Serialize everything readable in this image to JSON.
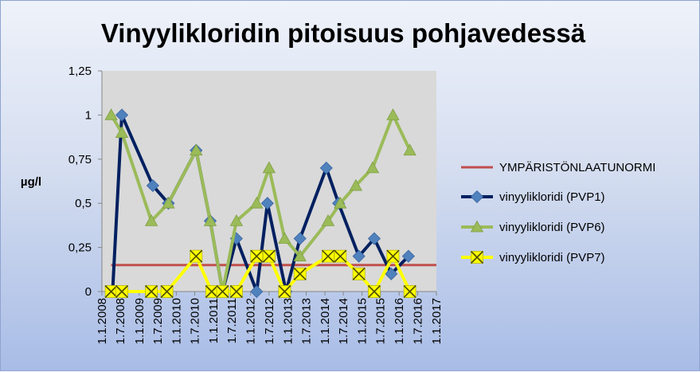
{
  "chart_data": {
    "type": "line",
    "title": "Vinyylikloridin pitoisuus pohjavedessä",
    "ylabel": "µg/l",
    "xlabel": "",
    "ylim": [
      0,
      1.25
    ],
    "y_ticks": [
      "0",
      "0,25",
      "0,5",
      "0,75",
      "1",
      "1,25"
    ],
    "x_range": [
      "1.1.2008",
      "1.1.2017"
    ],
    "x_ticks": [
      "1.1.2008",
      "1.7.2008",
      "1.1.2009",
      "1.7.2009",
      "1.1.2010",
      "1.7.2010",
      "1.1.2011",
      "1.7.2011",
      "1.1.2012",
      "1.7.2012",
      "1.1.2013",
      "1.7.2013",
      "1.1.2014",
      "1.7.2014",
      "1.1.2015",
      "1.7.2015",
      "1.1.2016",
      "1.7.2016",
      "1.1.2017"
    ],
    "grid": false,
    "plot_background": "#d9d9d9",
    "legend_position": "right",
    "series": [
      {
        "name": "YMPÄRISTÖNLAATUNORMI",
        "color": "#c0504d",
        "marker": "none",
        "x": [
          "2008-04-01",
          "2017-01-01"
        ],
        "y": [
          0.15,
          0.15
        ]
      },
      {
        "name": "vinyylikloridi (PVP1)",
        "color": "#002060",
        "marker_color": "#4f81bd",
        "marker": "diamond",
        "x": [
          "2008-04-15",
          "2008-07-15",
          "2009-05-15",
          "2009-10-15",
          "2010-07-15",
          "2010-12-01",
          "2011-04-01",
          "2011-08-15",
          "2012-03-01",
          "2012-06-15",
          "2012-12-15",
          "2013-05-01",
          "2014-01-15",
          "2014-05-15",
          "2014-12-01",
          "2015-05-01",
          "2015-10-15",
          "2016-04-01"
        ],
        "y": [
          0,
          1,
          0.6,
          0.5,
          0.8,
          0.4,
          0,
          0.3,
          0,
          0.5,
          0,
          0.3,
          0.7,
          0.5,
          0.2,
          0.3,
          0.1,
          0.2
        ]
      },
      {
        "name": "vinyylikloridi (PVP6)",
        "color": "#9bbb59",
        "marker": "triangle",
        "x": [
          "2008-04-01",
          "2008-07-15",
          "2009-05-01",
          "2009-10-15",
          "2010-07-15",
          "2010-12-01",
          "2011-04-01",
          "2011-08-15",
          "2012-03-01",
          "2012-07-01",
          "2012-12-01",
          "2013-05-01",
          "2014-02-01",
          "2014-06-01",
          "2014-11-01",
          "2015-04-15",
          "2015-11-01",
          "2016-04-15"
        ],
        "y": [
          1,
          0.9,
          0.4,
          0.5,
          0.8,
          0.4,
          0,
          0.4,
          0.5,
          0.7,
          0.3,
          0.2,
          0.4,
          0.5,
          0.6,
          0.7,
          1,
          0.8
        ]
      },
      {
        "name": "vinyylikloridi (PVP7)",
        "color": "#ffff00",
        "marker": "x-box",
        "x": [
          "2008-04-01",
          "2008-07-15",
          "2009-05-01",
          "2009-10-01",
          "2010-07-15",
          "2010-12-15",
          "2011-04-01",
          "2011-08-15",
          "2012-03-01",
          "2012-07-01",
          "2012-12-01",
          "2013-05-01",
          "2014-02-01",
          "2014-06-01",
          "2014-12-01",
          "2015-05-01",
          "2015-11-01",
          "2016-04-15"
        ],
        "y": [
          0,
          0,
          0,
          0,
          0.2,
          0,
          0,
          0,
          0.2,
          0.2,
          0,
          0.1,
          0.2,
          0.2,
          0.1,
          0,
          0.2,
          0
        ]
      }
    ]
  }
}
